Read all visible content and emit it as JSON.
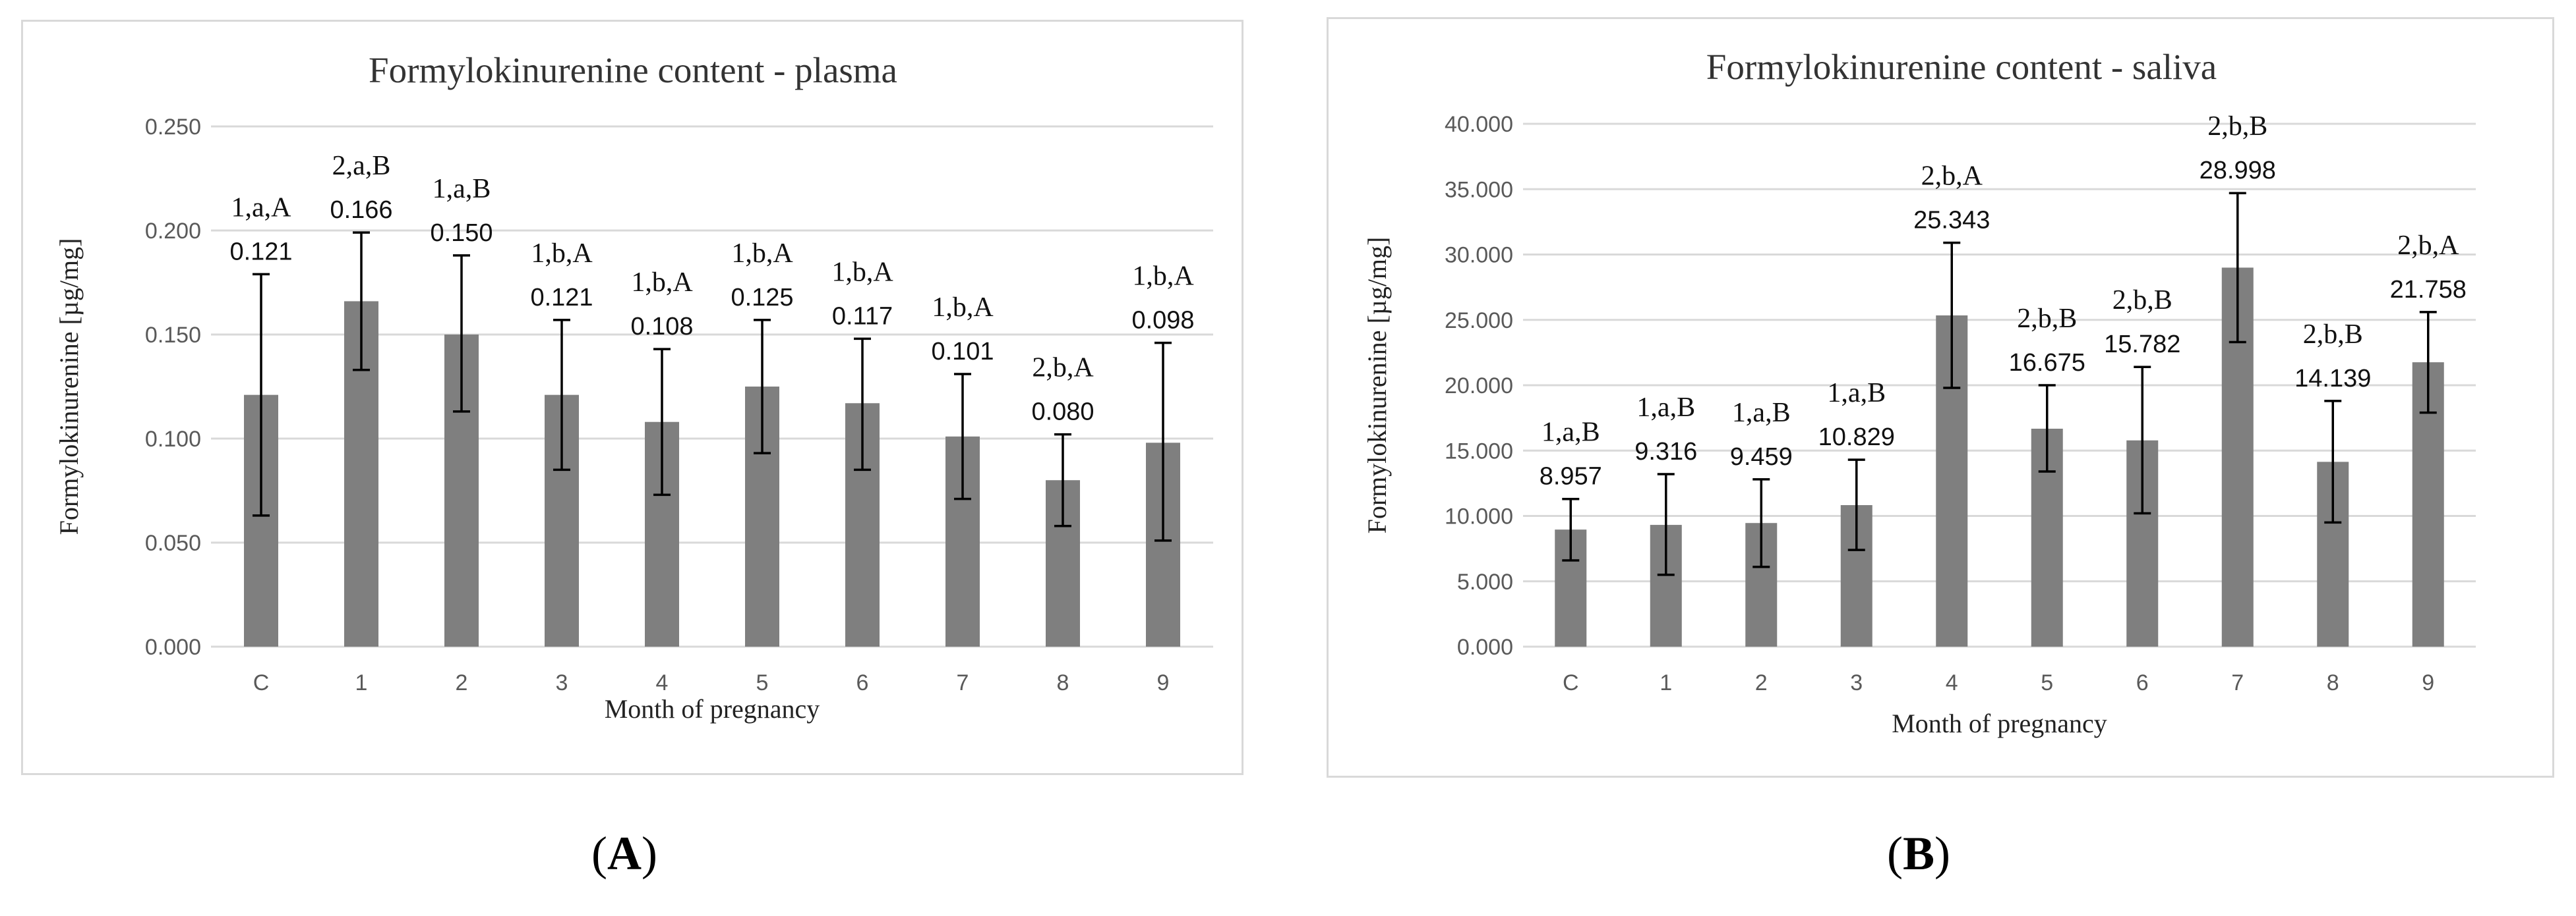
{
  "chart_data": [
    {
      "type": "bar",
      "title": "Formylokinurenine content - plasma",
      "xlabel": "Month of pregnancy",
      "ylabel": "Formylokinurenine [µg/mg]",
      "categories": [
        "C",
        "1",
        "2",
        "3",
        "4",
        "5",
        "6",
        "7",
        "8",
        "9"
      ],
      "values": [
        0.121,
        0.166,
        0.15,
        0.121,
        0.108,
        0.125,
        0.117,
        0.101,
        0.08,
        0.098
      ],
      "value_labels": [
        "0.121",
        "0.166",
        "0.150",
        "0.121",
        "0.108",
        "0.125",
        "0.117",
        "0.101",
        "0.080",
        "0.098"
      ],
      "error_low": [
        0.063,
        0.133,
        0.113,
        0.085,
        0.073,
        0.093,
        0.085,
        0.071,
        0.058,
        0.051
      ],
      "error_high": [
        0.179,
        0.199,
        0.188,
        0.157,
        0.143,
        0.157,
        0.148,
        0.131,
        0.102,
        0.146
      ],
      "significance": [
        "1,a,A",
        "2,a,B",
        "1,a,B",
        "1,b,A",
        "1,b,A",
        "1,b,A",
        "1,b,A",
        "1,b,A",
        "2,b,A",
        "1,b,A"
      ],
      "yticks": [
        "0.000",
        "0.050",
        "0.100",
        "0.150",
        "0.200",
        "0.250"
      ],
      "ylim": [
        0,
        0.25
      ],
      "grid": true
    },
    {
      "type": "bar",
      "title": "Formylokinurenine content - saliva",
      "xlabel": "Month of pregnancy",
      "ylabel": "Formylokinurenine [µg/mg]",
      "categories": [
        "C",
        "1",
        "2",
        "3",
        "4",
        "5",
        "6",
        "7",
        "8",
        "9"
      ],
      "values": [
        8.957,
        9.316,
        9.459,
        10.829,
        25.343,
        16.675,
        15.782,
        28.998,
        14.139,
        21.758
      ],
      "value_labels": [
        "8.957",
        "9.316",
        "9.459",
        "10.829",
        "25.343",
        "16.675",
        "15.782",
        "28.998",
        "14.139",
        "21.758"
      ],
      "error_low": [
        6.6,
        5.5,
        6.1,
        7.4,
        19.8,
        13.4,
        10.2,
        23.3,
        9.5,
        17.9
      ],
      "error_high": [
        11.3,
        13.2,
        12.8,
        14.3,
        30.9,
        20.0,
        21.4,
        34.7,
        18.8,
        25.6
      ],
      "significance": [
        "1,a,B",
        "1,a,B",
        "1,a,B",
        "1,a,B",
        "2,b,A",
        "2,b,B",
        "2,b,B",
        "2,b,B",
        "2,b,B",
        "2,b,A"
      ],
      "yticks": [
        "0.000",
        "5.000",
        "10.000",
        "15.000",
        "20.000",
        "25.000",
        "30.000",
        "35.000",
        "40.000"
      ],
      "ylim": [
        0,
        40
      ],
      "grid": true
    }
  ],
  "captions": [
    {
      "open": "(",
      "letter": "A",
      "close": ")"
    },
    {
      "open": "(",
      "letter": "B",
      "close": ")"
    }
  ]
}
